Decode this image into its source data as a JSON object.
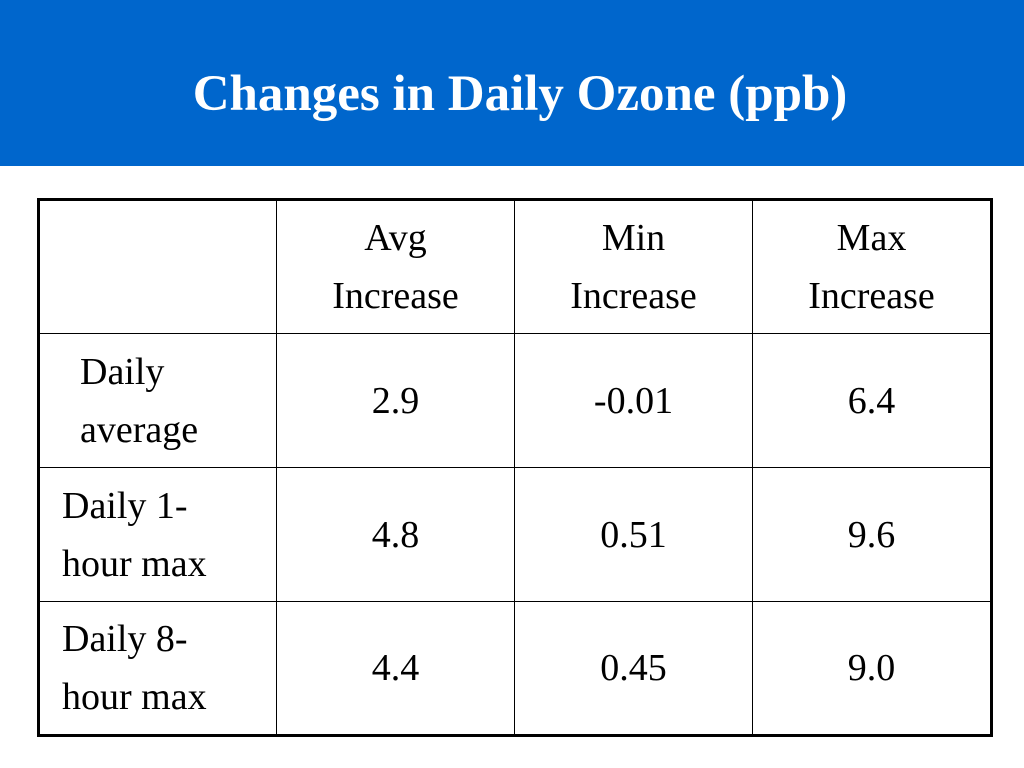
{
  "slide": {
    "title": "Changes in Daily Ozone (ppb)",
    "title_bar_color": "#0066cc"
  },
  "table": {
    "header": [
      "",
      "Avg\nIncrease",
      "Min\nIncrease",
      "Max\nIncrease"
    ],
    "columns": [
      {
        "line1": "Avg",
        "line2": "Increase"
      },
      {
        "line1": "Min",
        "line2": "Increase"
      },
      {
        "line1": "Max",
        "line2": "Increase"
      }
    ],
    "rows": [
      {
        "label_line1": "Daily",
        "label_line2": "average",
        "avg": "2.9",
        "min": "-0.01",
        "max": "6.4"
      },
      {
        "label_line1": "Daily 1-",
        "label_line2": "hour max",
        "avg": "4.8",
        "min": "0.51",
        "max": "9.6"
      },
      {
        "label_line1": "Daily 8-",
        "label_line2": "hour max",
        "avg": "4.4",
        "min": "0.45",
        "max": "9.0"
      }
    ]
  }
}
